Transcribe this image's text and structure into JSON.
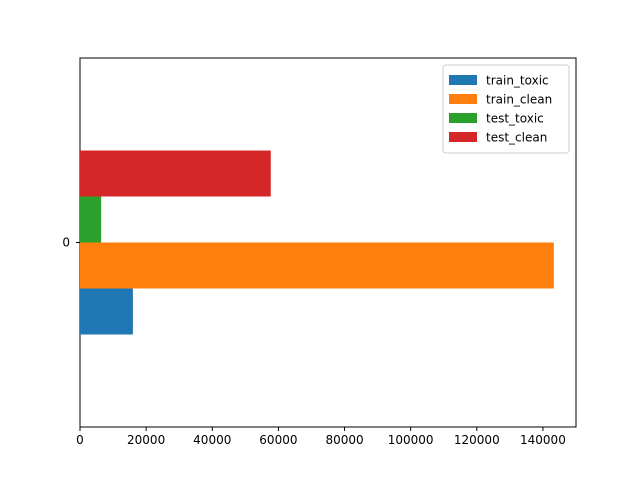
{
  "chart_data": {
    "type": "bar",
    "orientation": "horizontal",
    "categories": [
      "0"
    ],
    "series": [
      {
        "name": "train_toxic",
        "values": [
          16000
        ],
        "color": "#1f77b4"
      },
      {
        "name": "train_clean",
        "values": [
          143300
        ],
        "color": "#ff7f0e"
      },
      {
        "name": "test_toxic",
        "values": [
          6400
        ],
        "color": "#2ca02c"
      },
      {
        "name": "test_clean",
        "values": [
          57700
        ],
        "color": "#d62728"
      }
    ],
    "xlim": [
      0,
      150000
    ],
    "xticks": [
      0,
      20000,
      40000,
      60000,
      80000,
      100000,
      120000,
      140000
    ],
    "xtick_labels": [
      "0",
      "20000",
      "40000",
      "60000",
      "80000",
      "100000",
      "120000",
      "140000"
    ],
    "grid": false,
    "legend_position": "top-right"
  }
}
